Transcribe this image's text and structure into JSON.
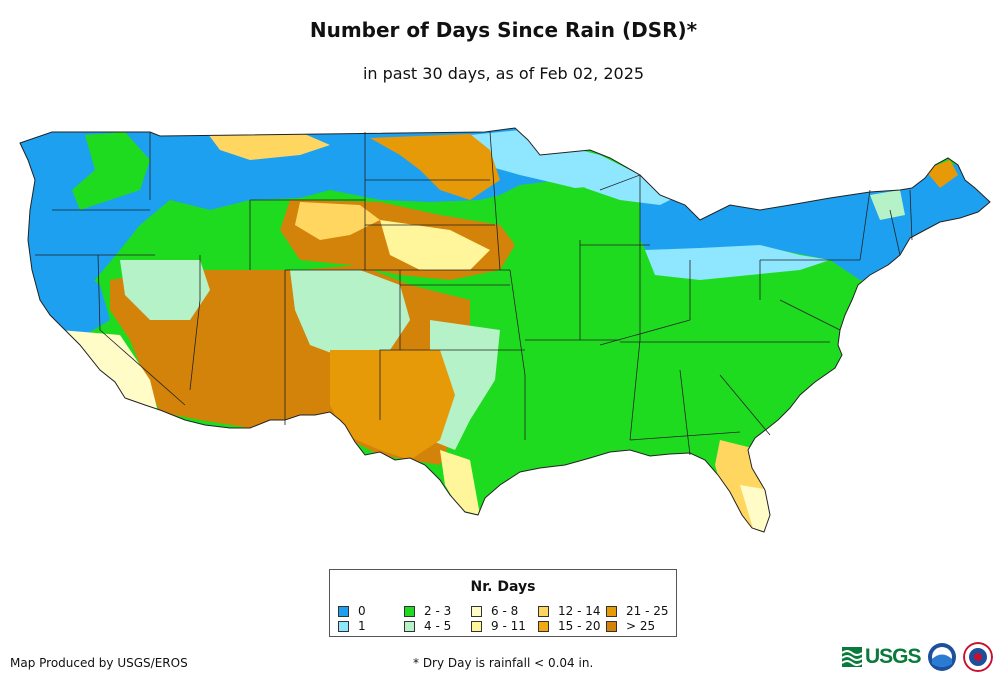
{
  "title": "Number of Days Since Rain (DSR)*",
  "subtitle": "in past 30 days, as of Feb 02, 2025",
  "legend": {
    "title": "Nr. Days",
    "items": [
      {
        "label": "0",
        "color": "#1ea0f0"
      },
      {
        "label": "1",
        "color": "#8ee6ff"
      },
      {
        "label": "2 - 3",
        "color": "#1fdb1f"
      },
      {
        "label": "4 - 5",
        "color": "#b6f2c8"
      },
      {
        "label": "6 - 8",
        "color": "#fffcc8"
      },
      {
        "label": "9 - 11",
        "color": "#fff59a"
      },
      {
        "label": "12 - 14",
        "color": "#ffd760"
      },
      {
        "label": "15 - 20",
        "color": "#f2aa12"
      },
      {
        "label": "21 - 25",
        "color": "#e79a08"
      },
      {
        "label": "> 25",
        "color": "#d4830a"
      }
    ]
  },
  "footer": {
    "credit": "Map Produced by USGS/EROS",
    "footnote": "* Dry Day is rainfall < 0.04 in."
  },
  "logos": {
    "usgs": "USGS"
  }
}
